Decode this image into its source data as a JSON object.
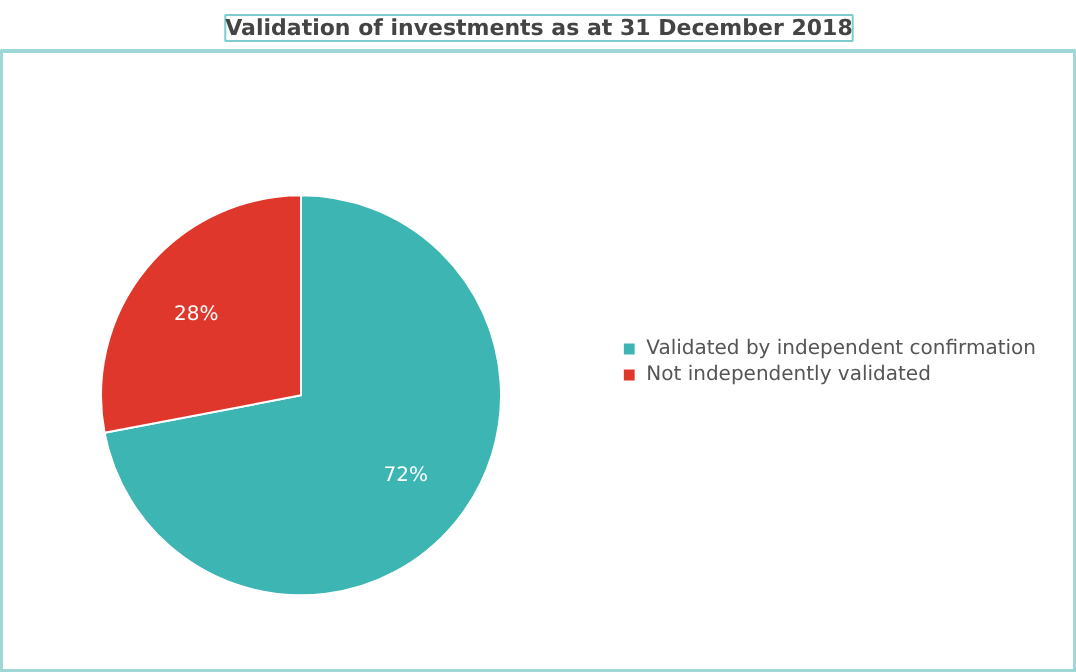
{
  "chart_data": {
    "type": "pie",
    "title": "Validation of investments as at 31 December 2018",
    "categories": [
      "Validated by independent confirmation",
      "Not independently validated"
    ],
    "values": [
      72,
      28
    ],
    "colors": [
      "#3cb5b3",
      "#e0372c"
    ],
    "value_labels": [
      "72%",
      "28%"
    ],
    "legend": "right"
  }
}
